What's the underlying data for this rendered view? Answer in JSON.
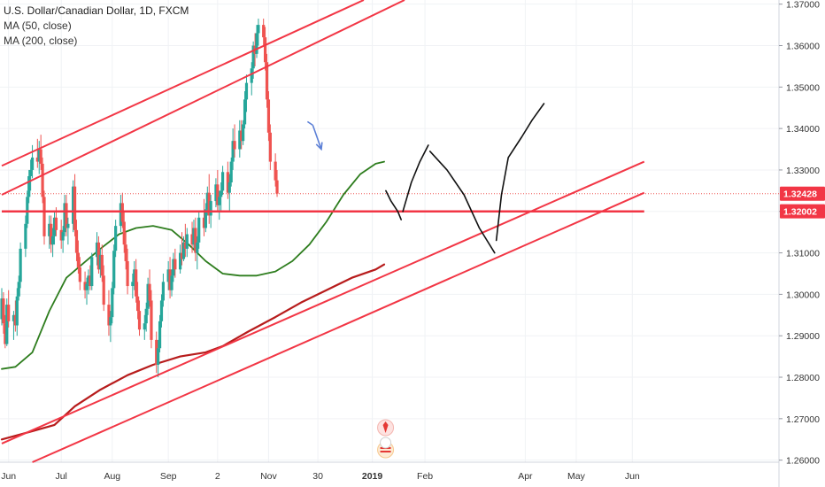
{
  "chart_data": {
    "type": "candlestick",
    "title": "U.S. Dollar/Canadian Dollar, 1D, FXCM",
    "indicators": [
      "MA (50, close)",
      "MA (200, close)"
    ],
    "x_ticks": [
      "Jun",
      "Jul",
      "Aug",
      "Sep",
      "2",
      "Nov",
      "30",
      "2019",
      "Feb",
      "Apr",
      "May",
      "Jun"
    ],
    "bold_tick": "2019",
    "y_ticks": [
      "1.37000",
      "1.36000",
      "1.35000",
      "1.34000",
      "1.33000",
      "1.32000",
      "1.31000",
      "1.30000",
      "1.29000",
      "1.28000",
      "1.27000",
      "1.26000"
    ],
    "ylim": [
      1.2595,
      1.371
    ],
    "price_labels": [
      {
        "text": "1.32428",
        "value": 1.32428,
        "color": "#f23645"
      },
      {
        "text": "1.32002",
        "value": 1.32002,
        "color": "#f23645"
      }
    ],
    "horizontal_line": 1.32002,
    "last_price": 1.32428,
    "colors": {
      "up": "#26a69a",
      "down": "#ef5350",
      "ma50": "#2e7d1e",
      "ma200": "#b71c1c",
      "trendline": "#f23645",
      "drawing": "#111111",
      "arrow": "#5b7fd6"
    },
    "candles_start": "May 28, 2018",
    "candles": [
      [
        1.294,
        1.3015,
        1.2925,
        1.299
      ],
      [
        1.299,
        1.3005,
        1.2905,
        1.293
      ],
      [
        1.293,
        1.295,
        1.287,
        1.288
      ],
      [
        1.288,
        1.299,
        1.2875,
        1.2975
      ],
      [
        1.2975,
        1.301,
        1.292,
        1.2935
      ],
      [
        1.2935,
        1.296,
        1.289,
        1.295
      ],
      [
        1.295,
        1.2985,
        1.291,
        1.2925
      ],
      [
        1.2925,
        1.3015,
        1.29,
        1.2995
      ],
      [
        1.2995,
        1.3045,
        1.2985,
        1.303
      ],
      [
        1.303,
        1.3125,
        1.3015,
        1.311
      ],
      [
        1.311,
        1.319,
        1.309,
        1.317
      ],
      [
        1.317,
        1.325,
        1.316,
        1.3235
      ],
      [
        1.3235,
        1.33,
        1.322,
        1.3285
      ],
      [
        1.3285,
        1.3325,
        1.325,
        1.33
      ],
      [
        1.33,
        1.336,
        1.328,
        1.333
      ],
      [
        1.333,
        1.3375,
        1.3305,
        1.332
      ],
      [
        1.332,
        1.337,
        1.329,
        1.335
      ],
      [
        1.335,
        1.3385,
        1.33,
        1.3315
      ],
      [
        1.3315,
        1.333,
        1.322,
        1.3235
      ],
      [
        1.3235,
        1.325,
        1.312,
        1.314
      ],
      [
        1.314,
        1.319,
        1.311,
        1.317
      ],
      [
        1.317,
        1.319,
        1.31,
        1.312
      ],
      [
        1.312,
        1.316,
        1.309,
        1.314
      ],
      [
        1.314,
        1.32,
        1.312,
        1.3185
      ],
      [
        1.3185,
        1.321,
        1.314,
        1.3155
      ],
      [
        1.3155,
        1.318,
        1.311,
        1.313
      ],
      [
        1.313,
        1.3165,
        1.31,
        1.315
      ],
      [
        1.315,
        1.324,
        1.314,
        1.322
      ],
      [
        1.322,
        1.324,
        1.314,
        1.316
      ],
      [
        1.316,
        1.3185,
        1.312,
        1.317
      ],
      [
        1.317,
        1.3275,
        1.315,
        1.326
      ],
      [
        1.326,
        1.329,
        1.314,
        1.3155
      ],
      [
        1.3155,
        1.318,
        1.308,
        1.31
      ],
      [
        1.31,
        1.313,
        1.305,
        1.3065
      ],
      [
        1.3065,
        1.309,
        1.301,
        1.303
      ],
      [
        1.303,
        1.3055,
        1.299,
        1.301
      ],
      [
        1.301,
        1.304,
        1.2975,
        1.3025
      ],
      [
        1.3025,
        1.306,
        1.3,
        1.3045
      ],
      [
        1.3045,
        1.307,
        1.301,
        1.302
      ],
      [
        1.302,
        1.31,
        1.301,
        1.309
      ],
      [
        1.309,
        1.315,
        1.307,
        1.3125
      ],
      [
        1.3125,
        1.314,
        1.305,
        1.306
      ],
      [
        1.306,
        1.311,
        1.304,
        1.3095
      ],
      [
        1.3095,
        1.312,
        1.303,
        1.3045
      ],
      [
        1.3045,
        1.307,
        1.296,
        1.2975
      ],
      [
        1.2975,
        1.301,
        1.29,
        1.2925
      ],
      [
        1.2925,
        1.296,
        1.2885,
        1.2945
      ],
      [
        1.2945,
        1.303,
        1.293,
        1.3015
      ],
      [
        1.3015,
        1.312,
        1.3,
        1.3105
      ],
      [
        1.3105,
        1.318,
        1.309,
        1.3165
      ],
      [
        1.3165,
        1.324,
        1.315,
        1.322
      ],
      [
        1.322,
        1.3245,
        1.316,
        1.3175
      ],
      [
        1.3175,
        1.32,
        1.31,
        1.312
      ],
      [
        1.312,
        1.315,
        1.306,
        1.308
      ],
      [
        1.308,
        1.311,
        1.3,
        1.302
      ],
      [
        1.302,
        1.305,
        1.299,
        1.303
      ],
      [
        1.303,
        1.308,
        1.301,
        1.306
      ],
      [
        1.306,
        1.3085,
        1.298,
        1.2995
      ],
      [
        1.2995,
        1.303,
        1.294,
        1.296
      ],
      [
        1.296,
        1.2985,
        1.29,
        1.2915
      ],
      [
        1.2915,
        1.295,
        1.289,
        1.293
      ],
      [
        1.293,
        1.298,
        1.291,
        1.2965
      ],
      [
        1.2965,
        1.304,
        1.295,
        1.3025
      ],
      [
        1.3025,
        1.306,
        1.297,
        1.2985
      ],
      [
        1.2985,
        1.301,
        1.287,
        1.289
      ],
      [
        1.289,
        1.291,
        1.281,
        1.283
      ],
      [
        1.283,
        1.289,
        1.28,
        1.287
      ],
      [
        1.287,
        1.295,
        1.286,
        1.2935
      ],
      [
        1.2935,
        1.3,
        1.292,
        1.2985
      ],
      [
        1.2985,
        1.305,
        1.297,
        1.303
      ],
      [
        1.303,
        1.308,
        1.301,
        1.306
      ],
      [
        1.306,
        1.309,
        1.299,
        1.301
      ],
      [
        1.301,
        1.306,
        1.2995,
        1.3045
      ],
      [
        1.3045,
        1.31,
        1.303,
        1.3085
      ],
      [
        1.3085,
        1.311,
        1.304,
        1.306
      ],
      [
        1.306,
        1.312,
        1.305,
        1.31
      ],
      [
        1.31,
        1.315,
        1.307,
        1.3085
      ],
      [
        1.3085,
        1.314,
        1.308,
        1.3125
      ],
      [
        1.3125,
        1.317,
        1.309,
        1.311
      ],
      [
        1.311,
        1.316,
        1.309,
        1.3145
      ],
      [
        1.3145,
        1.3175,
        1.31,
        1.312
      ],
      [
        1.312,
        1.318,
        1.311,
        1.316
      ],
      [
        1.316,
        1.3185,
        1.308,
        1.31
      ],
      [
        1.31,
        1.314,
        1.306,
        1.3125
      ],
      [
        1.3125,
        1.32,
        1.311,
        1.3185
      ],
      [
        1.3185,
        1.323,
        1.314,
        1.316
      ],
      [
        1.316,
        1.322,
        1.315,
        1.3205
      ],
      [
        1.3205,
        1.326,
        1.319,
        1.3245
      ],
      [
        1.3245,
        1.329,
        1.317,
        1.319
      ],
      [
        1.319,
        1.324,
        1.316,
        1.3225
      ],
      [
        1.3225,
        1.328,
        1.321,
        1.3265
      ],
      [
        1.3265,
        1.33,
        1.32,
        1.3215
      ],
      [
        1.3215,
        1.325,
        1.318,
        1.3235
      ],
      [
        1.3235,
        1.327,
        1.32,
        1.325
      ],
      [
        1.325,
        1.331,
        1.324,
        1.3295
      ],
      [
        1.3295,
        1.332,
        1.323,
        1.3245
      ],
      [
        1.3245,
        1.329,
        1.32,
        1.327
      ],
      [
        1.327,
        1.333,
        1.326,
        1.332
      ],
      [
        1.332,
        1.34,
        1.33,
        1.337
      ],
      [
        1.337,
        1.341,
        1.333,
        1.335
      ],
      [
        1.335,
        1.342,
        1.333,
        1.3395
      ],
      [
        1.3395,
        1.342,
        1.335,
        1.337
      ],
      [
        1.337,
        1.342,
        1.336,
        1.341
      ],
      [
        1.341,
        1.349,
        1.34,
        1.347
      ],
      [
        1.347,
        1.353,
        1.344,
        1.351
      ],
      [
        1.351,
        1.356,
        1.348,
        1.3545
      ],
      [
        1.3545,
        1.361,
        1.352,
        1.36
      ],
      [
        1.36,
        1.363,
        1.355,
        1.358
      ],
      [
        1.358,
        1.365,
        1.357,
        1.363
      ],
      [
        1.363,
        1.3665,
        1.36,
        1.365
      ],
      [
        1.365,
        1.3665,
        1.36,
        1.362
      ],
      [
        1.362,
        1.3645,
        1.354,
        1.356
      ],
      [
        1.356,
        1.358,
        1.345,
        1.347
      ],
      [
        1.347,
        1.349,
        1.337,
        1.339
      ],
      [
        1.339,
        1.341,
        1.33,
        1.332
      ],
      [
        1.332,
        1.334,
        1.326,
        1.3275
      ],
      [
        1.3275,
        1.33,
        1.3235,
        1.3243
      ]
    ],
    "ma50": [
      [
        "2018-05-28",
        1.282
      ],
      [
        "2018-06-05",
        1.2825
      ],
      [
        "2018-06-15",
        1.286
      ],
      [
        "2018-06-25",
        1.296
      ],
      [
        "2018-07-05",
        1.304
      ],
      [
        "2018-07-15",
        1.3075
      ],
      [
        "2018-07-25",
        1.311
      ],
      [
        "2018-08-05",
        1.3145
      ],
      [
        "2018-08-15",
        1.316
      ],
      [
        "2018-08-25",
        1.3165
      ],
      [
        "2018-09-05",
        1.3155
      ],
      [
        "2018-09-15",
        1.312
      ],
      [
        "2018-09-25",
        1.308
      ],
      [
        "2018-10-05",
        1.305
      ],
      [
        "2018-10-15",
        1.3045
      ],
      [
        "2018-10-25",
        1.3045
      ],
      [
        "2018-11-05",
        1.3055
      ],
      [
        "2018-11-15",
        1.308
      ],
      [
        "2018-11-25",
        1.312
      ],
      [
        "2018-12-05",
        1.3175
      ],
      [
        "2018-12-15",
        1.324
      ],
      [
        "2018-12-25",
        1.329
      ],
      [
        "2019-01-03",
        1.3315
      ],
      [
        "2019-01-08",
        1.332
      ]
    ],
    "ma200": [
      [
        "2018-05-28",
        1.265
      ],
      [
        "2018-06-15",
        1.267
      ],
      [
        "2018-06-28",
        1.2685
      ],
      [
        "2018-07-10",
        1.273
      ],
      [
        "2018-07-25",
        1.277
      ],
      [
        "2018-08-10",
        1.2805
      ],
      [
        "2018-08-25",
        1.283
      ],
      [
        "2018-09-10",
        1.285
      ],
      [
        "2018-09-25",
        1.286
      ],
      [
        "2018-10-05",
        1.2875
      ],
      [
        "2018-10-20",
        1.291
      ],
      [
        "2018-11-05",
        1.2945
      ],
      [
        "2018-11-20",
        1.298
      ],
      [
        "2018-12-05",
        1.301
      ],
      [
        "2018-12-20",
        1.304
      ],
      [
        "2019-01-03",
        1.306
      ],
      [
        "2019-01-08",
        1.3072
      ]
    ],
    "trendlines": [
      {
        "from": [
          "2018-05-28",
          1.331
        ],
        "to": [
          "2018-12-27",
          1.371
        ]
      },
      {
        "from": [
          "2018-05-28",
          1.324
        ],
        "to": [
          "2019-01-20",
          1.371
        ]
      },
      {
        "from": [
          "2018-05-28",
          1.264
        ],
        "to": [
          "2019-06-10",
          1.332
        ]
      },
      {
        "from": [
          "2018-06-15",
          1.2595
        ],
        "to": [
          "2019-06-10",
          1.3245
        ]
      },
      {
        "from": [
          "2018-05-28",
          1.32
        ],
        "to": [
          "2019-06-10",
          1.32
        ]
      }
    ],
    "forecast_drawing": [
      [
        [
          "2019-01-09",
          1.325
        ],
        [
          "2019-01-12",
          1.3225
        ],
        [
          "2019-01-16",
          1.32
        ],
        [
          "2019-01-18",
          1.318
        ]
      ],
      [
        [
          "2019-01-19",
          1.32
        ],
        [
          "2019-01-24",
          1.327
        ],
        [
          "2019-01-29",
          1.332
        ],
        [
          "2019-02-03",
          1.336
        ]
      ],
      [
        [
          "2019-02-04",
          1.3345
        ],
        [
          "2019-02-14",
          1.33
        ],
        [
          "2019-02-24",
          1.324
        ],
        [
          "2019-03-05",
          1.316
        ],
        [
          "2019-03-14",
          1.31
        ]
      ],
      [
        [
          "2019-03-15",
          1.313
        ],
        [
          "2019-03-18",
          1.324
        ],
        [
          "2019-03-22",
          1.333
        ],
        [
          "2019-03-30",
          1.338
        ],
        [
          "2019-04-05",
          1.342
        ],
        [
          "2019-04-12",
          1.346
        ]
      ]
    ],
    "arrow": {
      "from": [
        "2018-11-27",
        1.3408
      ],
      "to": [
        "2018-12-02",
        1.335
      ]
    }
  }
}
